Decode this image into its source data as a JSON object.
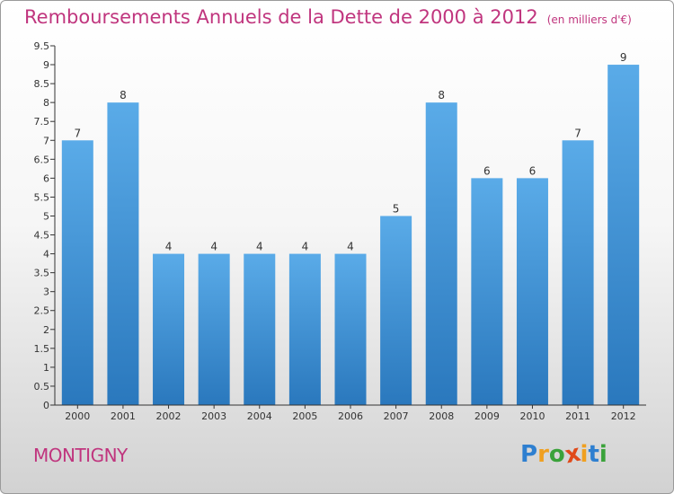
{
  "header": {
    "title": "Remboursements Annuels de la Dette de 2000 à 2012",
    "unit": "(en milliers d'€)"
  },
  "footer": {
    "town": "MONTIGNY",
    "logo": {
      "letters": [
        "P",
        "r",
        "o",
        "x",
        "i",
        "t",
        "i"
      ],
      "colors": [
        "#2e7fd0",
        "#f0a020",
        "#3aa23a",
        "#e04a1a",
        "#f0a020",
        "#2e7fd0",
        "#3aa23a"
      ]
    }
  },
  "colors": {
    "title": "#c0357e",
    "bar_light": "#5aabe8",
    "bar_dark": "#2a78bd",
    "axis": "#333333"
  },
  "chart_data": {
    "type": "bar",
    "title": "Remboursements Annuels de la Dette de 2000 à 2012",
    "xlabel": "",
    "ylabel": "",
    "ylim": [
      0,
      9.5
    ],
    "yticks": [
      0,
      0.5,
      1,
      1.5,
      2,
      2.5,
      3,
      3.5,
      4,
      4.5,
      5,
      5.5,
      6,
      6.5,
      7,
      7.5,
      8,
      8.5,
      9,
      9.5
    ],
    "ytick_labels": [
      "0",
      "0.5",
      "1",
      "1.5",
      "2",
      "2.5",
      "3",
      "3.5",
      "4",
      "4.5",
      "5",
      "5.5",
      "6",
      "6.5",
      "7",
      "7.5",
      "8",
      "8.5",
      "9",
      "9.5"
    ],
    "categories": [
      "2000",
      "2001",
      "2002",
      "2003",
      "2004",
      "2005",
      "2006",
      "2007",
      "2008",
      "2009",
      "2010",
      "2011",
      "2012"
    ],
    "values": [
      7,
      8,
      4,
      4,
      4,
      4,
      4,
      5,
      8,
      6,
      6,
      7,
      9
    ],
    "value_labels": [
      "7",
      "8",
      "4",
      "4",
      "4",
      "4",
      "4",
      "5",
      "8",
      "6",
      "6",
      "7",
      "9"
    ],
    "grid": false
  }
}
